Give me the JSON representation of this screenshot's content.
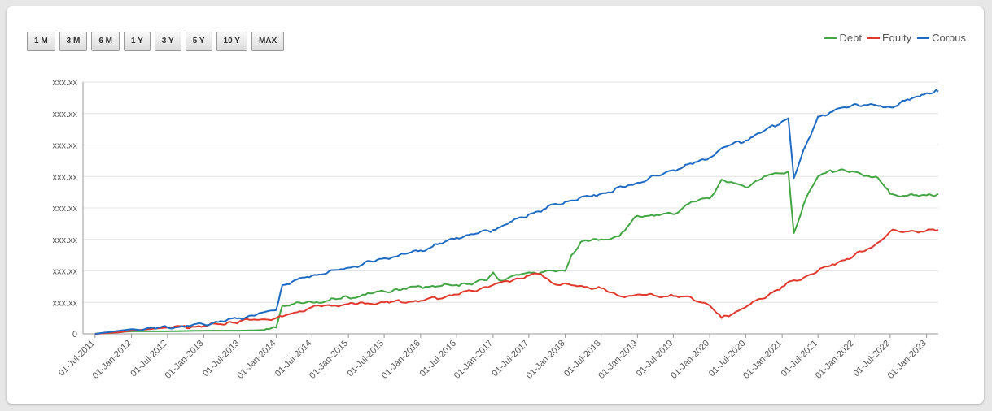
{
  "range_buttons": [
    "1 M",
    "3 M",
    "6 M",
    "1 Y",
    "3 Y",
    "5 Y",
    "10 Y",
    "MAX"
  ],
  "chart_data": {
    "type": "line",
    "xlabel": "",
    "ylabel": "",
    "grid": true,
    "legend": "top-right",
    "x_ticks": [
      "01-Jul-2011",
      "01-Jan-2012",
      "01-Jul-2012",
      "01-Jan-2013",
      "01-Jul-2013",
      "01-Jan-2014",
      "01-Jul-2014",
      "01-Jan-2015",
      "01-Jul-2015",
      "01-Jan-2016",
      "01-Jul-2016",
      "01-Jan-2017",
      "01-Jul-2017",
      "01-Jan-2018",
      "01-Jul-2018",
      "01-Jan-2019",
      "01-Jul-2019",
      "01-Jan-2020",
      "01-Jul-2020",
      "01-Jan-2021",
      "01-Jul-2021",
      "01-Jan-2022",
      "01-Jul-2022",
      "01-Jan-2023"
    ],
    "y_ticks": [
      "0",
      "xxx.xx",
      "xxx.xx",
      "xxx.xx",
      "xxx.xx",
      "xxx.xx",
      "xxx.xx",
      "xxx.xx",
      "xxx.xx"
    ],
    "ylim": [
      0,
      8
    ],
    "xlim": [
      "2011-05-01",
      "2023-03-01"
    ],
    "series": [
      {
        "name": "Debt",
        "color": "#43a543",
        "points": [
          [
            "2011-07-01",
            0
          ],
          [
            "2012-01-01",
            0.08
          ],
          [
            "2012-07-01",
            0.08
          ],
          [
            "2013-01-01",
            0.1
          ],
          [
            "2013-07-01",
            0.1
          ],
          [
            "2013-11-01",
            0.12
          ],
          [
            "2014-01-01",
            0.2
          ],
          [
            "2014-02-01",
            0.9
          ],
          [
            "2014-04-01",
            0.95
          ],
          [
            "2014-07-01",
            1.0
          ],
          [
            "2015-01-01",
            1.15
          ],
          [
            "2015-07-01",
            1.35
          ],
          [
            "2016-01-01",
            1.5
          ],
          [
            "2016-07-01",
            1.55
          ],
          [
            "2016-12-01",
            1.7
          ],
          [
            "2017-01-01",
            1.95
          ],
          [
            "2017-02-01",
            1.7
          ],
          [
            "2017-07-01",
            1.95
          ],
          [
            "2018-01-01",
            2.0
          ],
          [
            "2018-02-01",
            2.5
          ],
          [
            "2018-04-01",
            2.95
          ],
          [
            "2018-07-01",
            3.0
          ],
          [
            "2018-10-01",
            3.1
          ],
          [
            "2019-01-01",
            3.75
          ],
          [
            "2019-07-01",
            3.8
          ],
          [
            "2019-10-01",
            4.2
          ],
          [
            "2020-01-01",
            4.3
          ],
          [
            "2020-03-01",
            4.9
          ],
          [
            "2020-07-01",
            4.65
          ],
          [
            "2020-10-01",
            5.0
          ],
          [
            "2021-01-01",
            5.1
          ],
          [
            "2021-02-01",
            5.15
          ],
          [
            "2021-03-01",
            3.2
          ],
          [
            "2021-05-01",
            4.3
          ],
          [
            "2021-07-01",
            5.0
          ],
          [
            "2021-09-01",
            5.2
          ],
          [
            "2022-01-01",
            5.15
          ],
          [
            "2022-05-01",
            4.95
          ],
          [
            "2022-07-01",
            4.45
          ],
          [
            "2022-10-01",
            4.4
          ],
          [
            "2023-01-01",
            4.4
          ],
          [
            "2023-03-01",
            4.45
          ]
        ]
      },
      {
        "name": "Equity",
        "color": "#e03a2f",
        "points": [
          [
            "2011-07-01",
            0
          ],
          [
            "2011-11-01",
            0.05
          ],
          [
            "2012-01-01",
            0.1
          ],
          [
            "2012-07-01",
            0.2
          ],
          [
            "2013-01-01",
            0.25
          ],
          [
            "2013-07-01",
            0.4
          ],
          [
            "2014-01-01",
            0.5
          ],
          [
            "2014-02-01",
            0.55
          ],
          [
            "2014-07-01",
            0.85
          ],
          [
            "2015-01-01",
            0.95
          ],
          [
            "2015-07-01",
            1.0
          ],
          [
            "2016-01-01",
            1.05
          ],
          [
            "2016-07-01",
            1.25
          ],
          [
            "2017-01-01",
            1.55
          ],
          [
            "2017-07-01",
            1.85
          ],
          [
            "2017-09-01",
            1.9
          ],
          [
            "2017-11-01",
            1.6
          ],
          [
            "2018-07-01",
            1.45
          ],
          [
            "2018-10-01",
            1.2
          ],
          [
            "2019-01-01",
            1.25
          ],
          [
            "2019-07-01",
            1.2
          ],
          [
            "2019-10-01",
            1.15
          ],
          [
            "2020-01-01",
            0.9
          ],
          [
            "2020-03-01",
            0.5
          ],
          [
            "2020-07-01",
            0.85
          ],
          [
            "2021-01-01",
            1.5
          ],
          [
            "2021-07-01",
            2.0
          ],
          [
            "2022-01-01",
            2.5
          ],
          [
            "2022-04-01",
            2.75
          ],
          [
            "2022-07-01",
            3.25
          ],
          [
            "2022-10-01",
            3.25
          ],
          [
            "2023-03-01",
            3.3
          ]
        ]
      },
      {
        "name": "Corpus",
        "color": "#1f6bc2",
        "points": [
          [
            "2011-07-01",
            0
          ],
          [
            "2012-01-01",
            0.15
          ],
          [
            "2012-07-01",
            0.2
          ],
          [
            "2013-01-01",
            0.3
          ],
          [
            "2013-07-01",
            0.5
          ],
          [
            "2014-01-01",
            0.75
          ],
          [
            "2014-02-01",
            1.55
          ],
          [
            "2014-07-01",
            1.85
          ],
          [
            "2015-01-01",
            2.1
          ],
          [
            "2015-07-01",
            2.4
          ],
          [
            "2016-01-01",
            2.65
          ],
          [
            "2016-07-01",
            3.05
          ],
          [
            "2017-01-01",
            3.3
          ],
          [
            "2017-07-01",
            3.8
          ],
          [
            "2018-01-01",
            4.2
          ],
          [
            "2018-07-01",
            4.45
          ],
          [
            "2019-01-01",
            4.8
          ],
          [
            "2019-07-01",
            5.2
          ],
          [
            "2020-01-01",
            5.6
          ],
          [
            "2020-03-01",
            5.9
          ],
          [
            "2020-07-01",
            6.15
          ],
          [
            "2021-01-01",
            6.75
          ],
          [
            "2021-02-01",
            6.85
          ],
          [
            "2021-03-01",
            4.95
          ],
          [
            "2021-05-01",
            6.0
          ],
          [
            "2021-07-01",
            6.9
          ],
          [
            "2022-01-01",
            7.3
          ],
          [
            "2022-07-01",
            7.2
          ],
          [
            "2023-01-01",
            7.65
          ],
          [
            "2023-03-01",
            7.7
          ]
        ]
      }
    ]
  }
}
